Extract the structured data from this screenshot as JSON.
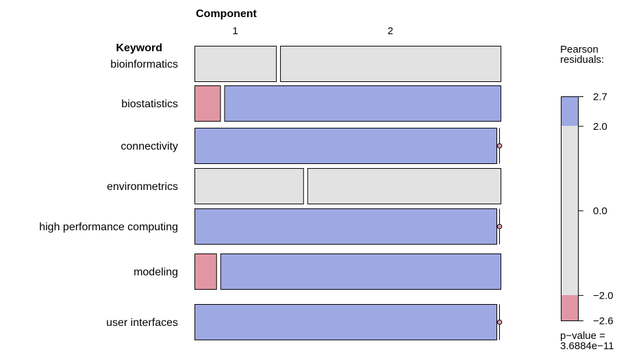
{
  "chart_data": {
    "type": "mosaic",
    "col_variable": "Component",
    "row_variable": "Keyword",
    "columns": [
      "1",
      "2"
    ],
    "rows": [
      {
        "label": "bioinformatics",
        "proportions": [
          0.27,
          0.73
        ],
        "residuals": [
          0.5,
          -0.3
        ]
      },
      {
        "label": "biostatistics",
        "proportions": [
          0.085,
          0.915
        ],
        "residuals": [
          -2.3,
          2.2
        ]
      },
      {
        "label": "connectivity",
        "proportions": [
          0.0,
          1.0
        ],
        "residuals": [
          -2.0,
          2.4
        ]
      },
      {
        "label": "environmetrics",
        "proportions": [
          0.36,
          0.64
        ],
        "residuals": [
          1.0,
          -0.6
        ]
      },
      {
        "label": "high performance computing",
        "proportions": [
          0.0,
          1.0
        ],
        "residuals": [
          -2.0,
          2.4
        ]
      },
      {
        "label": "modeling",
        "proportions": [
          0.072,
          0.928
        ],
        "residuals": [
          -2.6,
          2.7
        ]
      },
      {
        "label": "user interfaces",
        "proportions": [
          0.0,
          1.0
        ],
        "residuals": [
          -2.0,
          2.4
        ]
      }
    ],
    "legend": {
      "title_lines": [
        "Pearson",
        "residuals:"
      ],
      "max": 2.7,
      "min": -2.6,
      "ticks": [
        {
          "value": 2.7,
          "label": "2.7"
        },
        {
          "value": 2.0,
          "label": "2.0"
        },
        {
          "value": 0.0,
          "label": "0.0"
        },
        {
          "value": -2.0,
          "label": "−2.0"
        },
        {
          "value": -2.6,
          "label": "−2.6"
        }
      ],
      "p_value_lines": [
        "p−value =",
        "3.6884e−11"
      ]
    },
    "colors": {
      "positive": "#9ea8e3",
      "negative": "#e197a3",
      "neutral": "#e2e2e2",
      "border": "#000000"
    }
  }
}
